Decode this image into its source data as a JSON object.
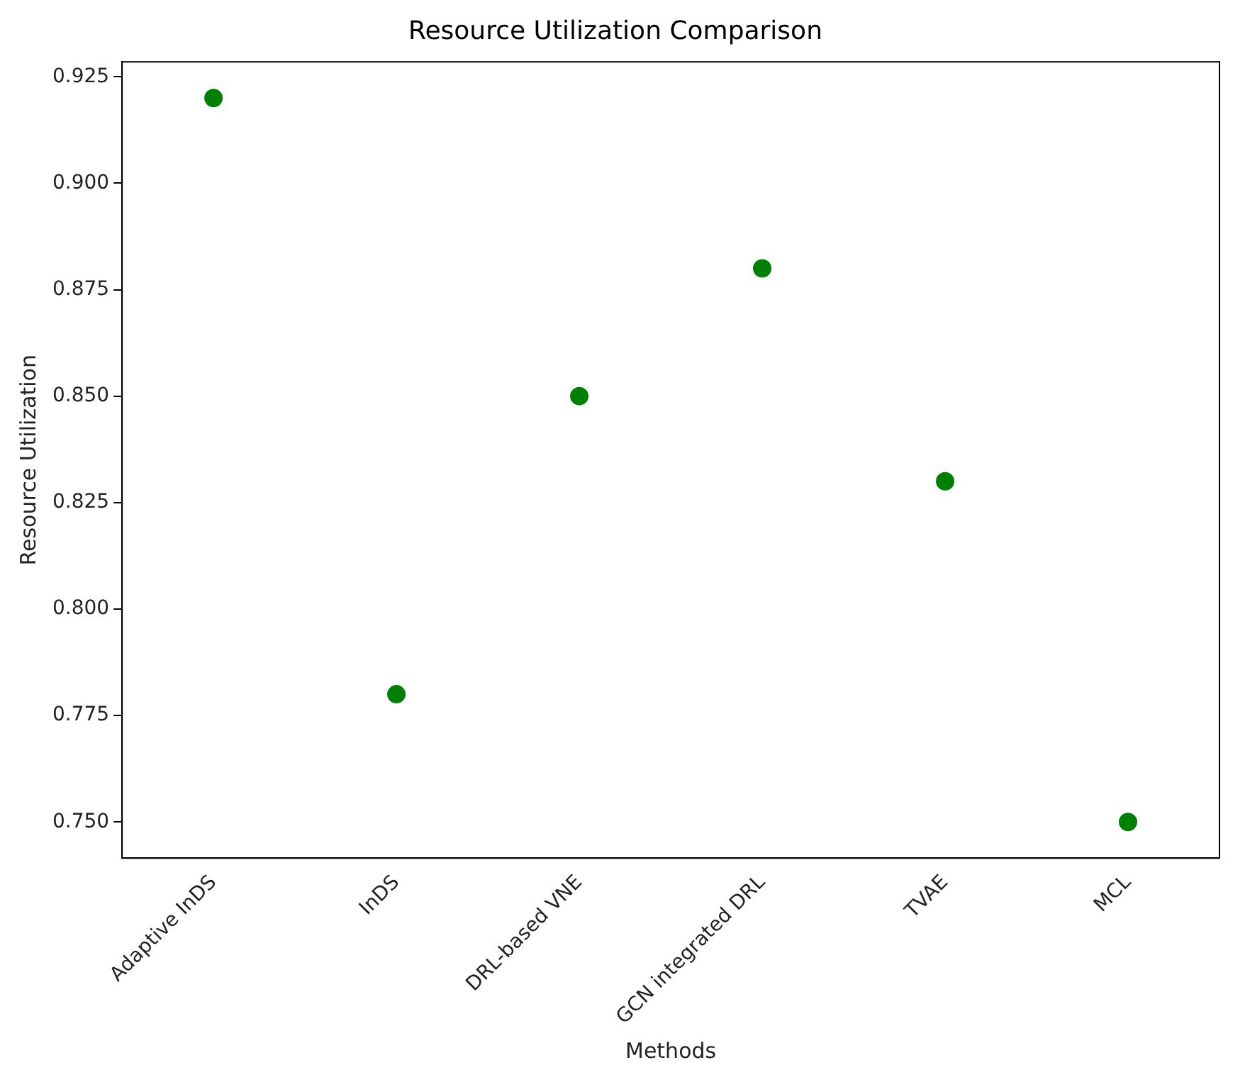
{
  "chart_data": {
    "type": "scatter",
    "title": "Resource Utilization Comparison",
    "xlabel": "Methods",
    "ylabel": "Resource Utilization",
    "categories": [
      "Adaptive InDS",
      "InDS",
      "DRL-based VNE",
      "GCN integrated DRL",
      "TVAE",
      "MCL"
    ],
    "values": [
      0.92,
      0.78,
      0.85,
      0.88,
      0.83,
      0.75
    ],
    "color": "#008000",
    "ylim": [
      0.7415,
      0.9285
    ],
    "yticks": [
      {
        "value": 0.75,
        "label": "0.750"
      },
      {
        "value": 0.775,
        "label": "0.775"
      },
      {
        "value": 0.8,
        "label": "0.800"
      },
      {
        "value": 0.825,
        "label": "0.825"
      },
      {
        "value": 0.85,
        "label": "0.850"
      },
      {
        "value": 0.875,
        "label": "0.875"
      },
      {
        "value": 0.9,
        "label": "0.900"
      },
      {
        "value": 0.925,
        "label": "0.925"
      }
    ],
    "grid": false,
    "legend": false,
    "marker": "circle"
  }
}
